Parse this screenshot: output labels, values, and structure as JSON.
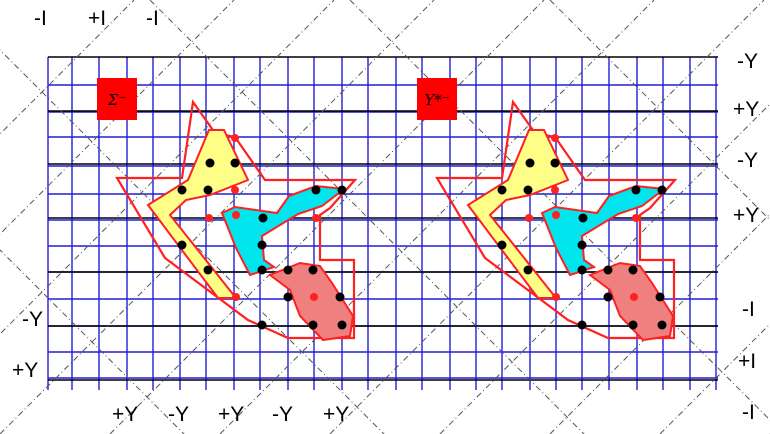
{
  "colors": {
    "grid_blue": "#1f1fd6",
    "grid_black": "#000000",
    "outline_red": "#ff2020",
    "fill_yellow": "#ffff88",
    "fill_cyan": "#00e5ee",
    "fill_pink": "#f08080",
    "box_red": "#ff0000",
    "node_black": "#000000",
    "node_red": "#ff2020"
  },
  "top_labels": [
    "-I",
    "+I",
    "-I"
  ],
  "bottom_labels": [
    "+Y",
    "-Y",
    "+Y",
    "-Y",
    "+Y"
  ],
  "right_labels": [
    "-Y",
    "+Y",
    "-Y",
    "+Y",
    "-I",
    "+I",
    "-I"
  ],
  "left_labels": [
    "-Y",
    "+Y"
  ],
  "panels": [
    {
      "box_label": "Σ⁻"
    },
    {
      "box_label": "Y*⁻"
    }
  ]
}
